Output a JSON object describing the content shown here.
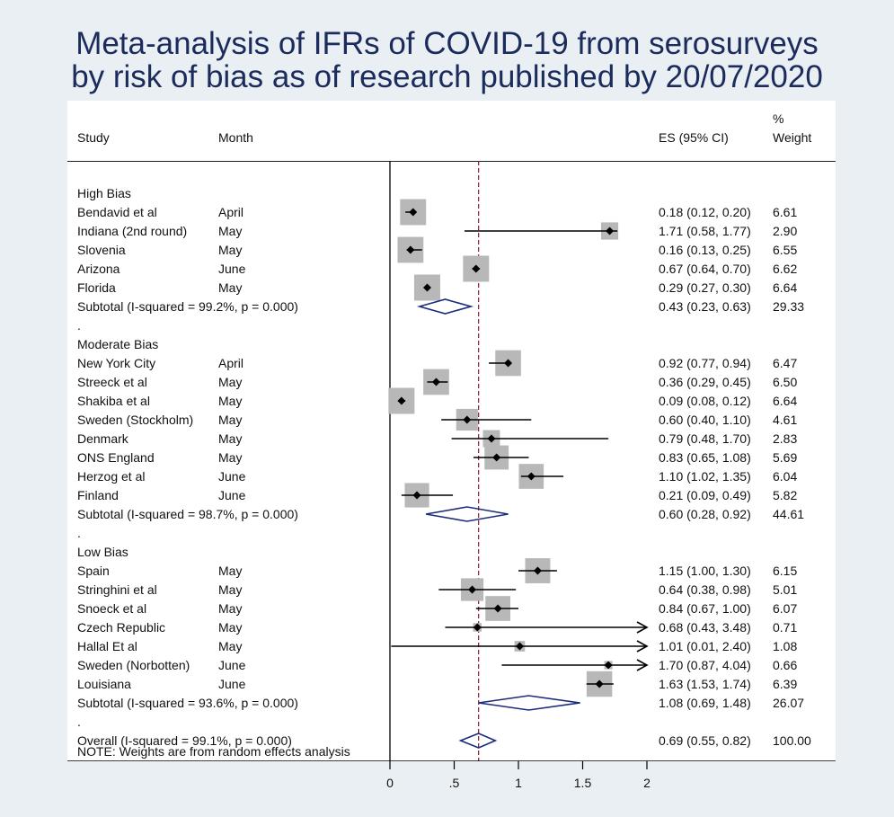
{
  "title": {
    "line1": "Meta-analysis of IFRs of COVID-19 from serosurveys",
    "line2": "by risk of bias as of research published by 20/07/2020"
  },
  "colors": {
    "background": "#e9eff3",
    "panel": "#ffffff",
    "box": "#b8b8b8",
    "diamond": "#1b2c7a",
    "overall_line": "#8b1a2a",
    "title": "#1b2c5c"
  },
  "chart_data": {
    "type": "forest",
    "xlim": [
      0,
      2
    ],
    "xticks": [
      {
        "value": 0,
        "label": "0"
      },
      {
        "value": 0.5,
        "label": ".5"
      },
      {
        "value": 1,
        "label": "1"
      },
      {
        "value": 1.5,
        "label": "1.5"
      },
      {
        "value": 2,
        "label": "2"
      }
    ],
    "overall_line": 0.69,
    "headers": {
      "study": "Study",
      "month": "Month",
      "es": "ES (95% CI)",
      "weight_line1": "%",
      "weight_line2": "Weight"
    },
    "rows": [
      {
        "kind": "group",
        "label": "High Bias"
      },
      {
        "kind": "study",
        "study": "Bendavid et al",
        "month": "April",
        "es": 0.18,
        "lo": 0.12,
        "hi": 0.2,
        "w": 6.61,
        "es_text": "0.18 (0.12, 0.20)",
        "w_text": "6.61"
      },
      {
        "kind": "study",
        "study": "Indiana (2nd round)",
        "month": "May",
        "es": 1.71,
        "lo": 0.58,
        "hi": 1.77,
        "w": 2.9,
        "es_text": "1.71 (0.58, 1.77)",
        "w_text": "2.90"
      },
      {
        "kind": "study",
        "study": "Slovenia",
        "month": "May",
        "es": 0.16,
        "lo": 0.13,
        "hi": 0.25,
        "w": 6.55,
        "es_text": "0.16 (0.13, 0.25)",
        "w_text": "6.55"
      },
      {
        "kind": "study",
        "study": "Arizona",
        "month": "June",
        "es": 0.67,
        "lo": 0.64,
        "hi": 0.7,
        "w": 6.62,
        "es_text": "0.67 (0.64, 0.70)",
        "w_text": "6.62"
      },
      {
        "kind": "study",
        "study": "Florida",
        "month": "May",
        "es": 0.29,
        "lo": 0.27,
        "hi": 0.3,
        "w": 6.64,
        "es_text": "0.29 (0.27, 0.30)",
        "w_text": "6.64"
      },
      {
        "kind": "subtotal",
        "study": "Subtotal  (I-squared = 99.2%, p = 0.000)",
        "es": 0.43,
        "lo": 0.23,
        "hi": 0.63,
        "es_text": "0.43 (0.23, 0.63)",
        "w_text": "29.33"
      },
      {
        "kind": "dot",
        "label": "."
      },
      {
        "kind": "group",
        "label": "Moderate Bias"
      },
      {
        "kind": "study",
        "study": "New York City",
        "month": "April",
        "es": 0.92,
        "lo": 0.77,
        "hi": 0.94,
        "w": 6.47,
        "es_text": "0.92 (0.77, 0.94)",
        "w_text": "6.47"
      },
      {
        "kind": "study",
        "study": "Streeck et al",
        "month": "May",
        "es": 0.36,
        "lo": 0.29,
        "hi": 0.45,
        "w": 6.5,
        "es_text": "0.36 (0.29, 0.45)",
        "w_text": "6.50"
      },
      {
        "kind": "study",
        "study": "Shakiba et al",
        "month": "May",
        "es": 0.09,
        "lo": 0.08,
        "hi": 0.12,
        "w": 6.64,
        "es_text": "0.09 (0.08, 0.12)",
        "w_text": "6.64"
      },
      {
        "kind": "study",
        "study": "Sweden (Stockholm)",
        "month": "May",
        "es": 0.6,
        "lo": 0.4,
        "hi": 1.1,
        "w": 4.61,
        "es_text": "0.60 (0.40, 1.10)",
        "w_text": "4.61"
      },
      {
        "kind": "study",
        "study": "Denmark",
        "month": "May",
        "es": 0.79,
        "lo": 0.48,
        "hi": 1.7,
        "w": 2.83,
        "es_text": "0.79 (0.48, 1.70)",
        "w_text": "2.83"
      },
      {
        "kind": "study",
        "study": "ONS England",
        "month": "May",
        "es": 0.83,
        "lo": 0.65,
        "hi": 1.08,
        "w": 5.69,
        "es_text": "0.83 (0.65, 1.08)",
        "w_text": "5.69"
      },
      {
        "kind": "study",
        "study": "Herzog et al",
        "month": "June",
        "es": 1.1,
        "lo": 1.02,
        "hi": 1.35,
        "w": 6.04,
        "es_text": "1.10 (1.02, 1.35)",
        "w_text": "6.04"
      },
      {
        "kind": "study",
        "study": "Finland",
        "month": "June",
        "es": 0.21,
        "lo": 0.09,
        "hi": 0.49,
        "w": 5.82,
        "es_text": "0.21 (0.09, 0.49)",
        "w_text": "5.82"
      },
      {
        "kind": "subtotal",
        "study": "Subtotal  (I-squared = 98.7%, p = 0.000)",
        "es": 0.6,
        "lo": 0.28,
        "hi": 0.92,
        "es_text": "0.60 (0.28, 0.92)",
        "w_text": "44.61"
      },
      {
        "kind": "dot",
        "label": "."
      },
      {
        "kind": "group",
        "label": "Low Bias"
      },
      {
        "kind": "study",
        "study": "Spain",
        "month": "May",
        "es": 1.15,
        "lo": 1.0,
        "hi": 1.3,
        "w": 6.15,
        "es_text": "1.15 (1.00, 1.30)",
        "w_text": "6.15"
      },
      {
        "kind": "study",
        "study": "Stringhini et al",
        "month": "May",
        "es": 0.64,
        "lo": 0.38,
        "hi": 0.98,
        "w": 5.01,
        "es_text": "0.64 (0.38, 0.98)",
        "w_text": "5.01"
      },
      {
        "kind": "study",
        "study": "Snoeck et al",
        "month": "May",
        "es": 0.84,
        "lo": 0.67,
        "hi": 1.0,
        "w": 6.07,
        "es_text": "0.84 (0.67, 1.00)",
        "w_text": "6.07"
      },
      {
        "kind": "study",
        "study": "Czech Republic",
        "month": "May",
        "es": 0.68,
        "lo": 0.43,
        "hi": 3.48,
        "w": 0.71,
        "es_text": "0.68 (0.43, 3.48)",
        "w_text": "0.71"
      },
      {
        "kind": "study",
        "study": "Hallal Et al",
        "month": "May",
        "es": 1.01,
        "lo": 0.01,
        "hi": 2.4,
        "w": 1.08,
        "es_text": "1.01 (0.01, 2.40)",
        "w_text": "1.08"
      },
      {
        "kind": "study",
        "study": "Sweden (Norbotten)",
        "month": "June",
        "es": 1.7,
        "lo": 0.87,
        "hi": 4.04,
        "w": 0.66,
        "es_text": "1.70 (0.87, 4.04)",
        "w_text": "0.66"
      },
      {
        "kind": "study",
        "study": "Louisiana",
        "month": "June",
        "es": 1.63,
        "lo": 1.53,
        "hi": 1.74,
        "w": 6.39,
        "es_text": "1.63 (1.53, 1.74)",
        "w_text": "6.39"
      },
      {
        "kind": "subtotal",
        "study": "Subtotal  (I-squared = 93.6%, p = 0.000)",
        "es": 1.08,
        "lo": 0.69,
        "hi": 1.48,
        "es_text": "1.08 (0.69, 1.48)",
        "w_text": "26.07"
      },
      {
        "kind": "dot",
        "label": "."
      },
      {
        "kind": "overall",
        "study": "Overall  (I-squared = 99.1%, p = 0.000)",
        "es": 0.69,
        "lo": 0.55,
        "hi": 0.82,
        "es_text": "0.69 (0.55, 0.82)",
        "w_text": "100.00"
      }
    ],
    "note": "NOTE: Weights are from random effects analysis"
  }
}
